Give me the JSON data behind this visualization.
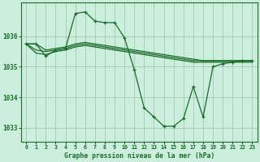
{
  "bg_color": "#cceedd",
  "grid_color": "#aaccbb",
  "line_color": "#1a6b2a",
  "title": "Graphe pression niveau de la mer (hPa)",
  "xlim": [
    -0.5,
    23.5
  ],
  "ylim": [
    1032.55,
    1037.1
  ],
  "xticks": [
    0,
    1,
    2,
    3,
    4,
    5,
    6,
    7,
    8,
    9,
    10,
    11,
    12,
    13,
    14,
    15,
    16,
    17,
    18,
    19,
    20,
    21,
    22,
    23
  ],
  "yticks": [
    1033,
    1034,
    1035,
    1036
  ],
  "series_main": [
    1035.75,
    1035.75,
    1035.35,
    1035.55,
    1035.6,
    1036.75,
    1036.8,
    1036.5,
    1036.45,
    1036.45,
    1035.95,
    1034.9,
    1033.65,
    1033.35,
    1033.05,
    1033.05,
    1033.3,
    1034.35,
    1033.35,
    1035.0,
    1035.1,
    1035.15,
    1035.2,
    1035.2
  ],
  "series_flat": [
    [
      1035.75,
      1035.75,
      1035.55,
      1035.6,
      1035.65,
      1035.75,
      1035.8,
      1035.75,
      1035.7,
      1035.65,
      1035.6,
      1035.55,
      1035.5,
      1035.45,
      1035.4,
      1035.35,
      1035.3,
      1035.25,
      1035.2,
      1035.2,
      1035.2,
      1035.2,
      1035.2,
      1035.2
    ],
    [
      1035.75,
      1035.55,
      1035.5,
      1035.55,
      1035.6,
      1035.7,
      1035.75,
      1035.7,
      1035.65,
      1035.6,
      1035.55,
      1035.5,
      1035.45,
      1035.4,
      1035.35,
      1035.3,
      1035.25,
      1035.2,
      1035.2,
      1035.2,
      1035.2,
      1035.2,
      1035.2,
      1035.2
    ],
    [
      1035.75,
      1035.45,
      1035.4,
      1035.5,
      1035.55,
      1035.65,
      1035.7,
      1035.65,
      1035.6,
      1035.55,
      1035.5,
      1035.45,
      1035.4,
      1035.35,
      1035.3,
      1035.25,
      1035.2,
      1035.15,
      1035.15,
      1035.15,
      1035.15,
      1035.15,
      1035.15,
      1035.15
    ]
  ]
}
